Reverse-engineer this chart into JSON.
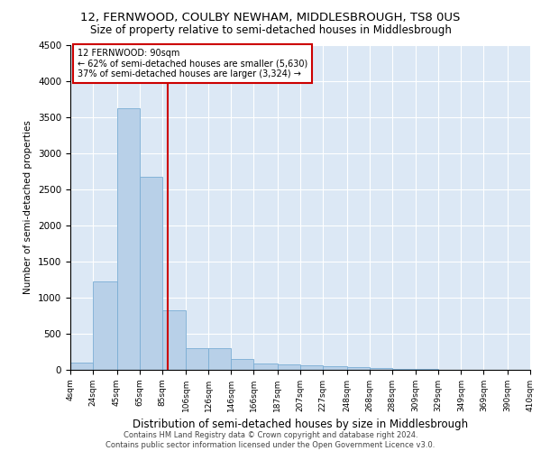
{
  "title1": "12, FERNWOOD, COULBY NEWHAM, MIDDLESBROUGH, TS8 0US",
  "title2": "Size of property relative to semi-detached houses in Middlesbrough",
  "xlabel": "Distribution of semi-detached houses by size in Middlesbrough",
  "ylabel": "Number of semi-detached properties",
  "footnote": "Contains HM Land Registry data © Crown copyright and database right 2024.\nContains public sector information licensed under the Open Government Licence v3.0.",
  "bin_edges": [
    4,
    24,
    45,
    65,
    85,
    106,
    126,
    146,
    166,
    187,
    207,
    227,
    248,
    268,
    288,
    309,
    329,
    349,
    369,
    390,
    410
  ],
  "bar_heights": [
    100,
    1220,
    3620,
    2680,
    830,
    300,
    300,
    150,
    90,
    70,
    60,
    50,
    40,
    20,
    15,
    10,
    5,
    5,
    5,
    5
  ],
  "bar_color": "#b8d0e8",
  "bar_edge_color": "#7aadd4",
  "vline_x": 90,
  "vline_color": "#cc0000",
  "annotation_text": "12 FERNWOOD: 90sqm\n← 62% of semi-detached houses are smaller (5,630)\n37% of semi-detached houses are larger (3,324) →",
  "annotation_box_color": "white",
  "annotation_box_edge": "#cc0000",
  "ylim": [
    0,
    4500
  ],
  "yticks": [
    0,
    500,
    1000,
    1500,
    2000,
    2500,
    3000,
    3500,
    4000,
    4500
  ],
  "bg_color": "#dce8f5",
  "title1_fontsize": 9.5,
  "title2_fontsize": 8.5,
  "xlabel_fontsize": 8.5,
  "ylabel_fontsize": 7.5,
  "tick_labels": [
    "4sqm",
    "24sqm",
    "45sqm",
    "65sqm",
    "85sqm",
    "106sqm",
    "126sqm",
    "146sqm",
    "166sqm",
    "187sqm",
    "207sqm",
    "227sqm",
    "248sqm",
    "268sqm",
    "288sqm",
    "309sqm",
    "329sqm",
    "349sqm",
    "369sqm",
    "390sqm",
    "410sqm"
  ]
}
